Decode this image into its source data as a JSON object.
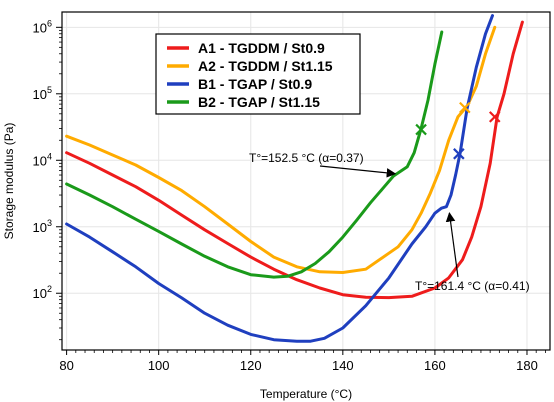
{
  "chart_data": {
    "type": "line",
    "xlabel": "Temperature (°C)",
    "ylabel": "Storage modulus (Pa)",
    "xlim": [
      79,
      185
    ],
    "ylim": [
      14,
      1700000
    ],
    "yscale": "log",
    "xticks": [
      80,
      100,
      120,
      140,
      160,
      180
    ],
    "yticks": [
      {
        "value": 100,
        "base": "10",
        "exp": "2"
      },
      {
        "value": 1000,
        "base": "10",
        "exp": "3"
      },
      {
        "value": 10000,
        "base": "10",
        "exp": "4"
      },
      {
        "value": 100000,
        "base": "10",
        "exp": "5"
      },
      {
        "value": 1000000,
        "base": "10",
        "exp": "6"
      }
    ],
    "grid": true,
    "legend_position": "top-center",
    "series": [
      {
        "name": "A1 - TGDDM / St0.9",
        "color": "#ee1c1c",
        "x": [
          80,
          85,
          90,
          95,
          100,
          105,
          110,
          115,
          120,
          125,
          130,
          135,
          140,
          145,
          150,
          155,
          160,
          163,
          166,
          168,
          170,
          172,
          173.5,
          175,
          177,
          179
        ],
        "y": [
          13000,
          9000,
          6000,
          4000,
          2500,
          1500,
          900,
          560,
          350,
          230,
          160,
          120,
          95,
          87,
          86,
          90,
          120,
          170,
          320,
          700,
          2000,
          9000,
          45000,
          100000,
          400000,
          1200000
        ],
        "marker": {
          "x": 173,
          "y": 45000
        }
      },
      {
        "name": "A2 - TGDDM / St1.15",
        "color": "#ffab00",
        "x": [
          80,
          85,
          90,
          95,
          100,
          105,
          110,
          115,
          120,
          125,
          130,
          135,
          140,
          145,
          150,
          152,
          155,
          157,
          159,
          161,
          163,
          165,
          167,
          169,
          171,
          173
        ],
        "y": [
          23000,
          17000,
          12000,
          8500,
          5500,
          3500,
          2000,
          1100,
          600,
          350,
          250,
          210,
          205,
          230,
          400,
          500,
          900,
          1600,
          3200,
          7000,
          20000,
          45000,
          65000,
          130000,
          400000,
          1000000
        ],
        "marker": {
          "x": 166.5,
          "y": 62000
        }
      },
      {
        "name": "B1 - TGAP / St0.9",
        "color": "#1f3fbf",
        "x": [
          80,
          85,
          90,
          95,
          100,
          105,
          110,
          115,
          120,
          125,
          130,
          133,
          136,
          140,
          145,
          150,
          155,
          158,
          160,
          161.4,
          162.5,
          163.5,
          164.5,
          165.5,
          167,
          169,
          171,
          172.5
        ],
        "y": [
          1100,
          700,
          420,
          250,
          140,
          85,
          50,
          33,
          24,
          20,
          19,
          19,
          21,
          30,
          65,
          170,
          550,
          1000,
          1600,
          1900,
          2000,
          3000,
          6000,
          13000,
          60000,
          250000,
          800000,
          1500000
        ],
        "marker": {
          "x": 165.2,
          "y": 12500
        }
      },
      {
        "name": "B2 - TGAP / St1.15",
        "color": "#1a9a1a",
        "x": [
          80,
          85,
          90,
          95,
          100,
          105,
          110,
          115,
          120,
          125,
          128,
          131,
          134,
          137,
          140,
          143,
          146,
          149,
          151,
          152.5,
          154,
          155.5,
          157,
          158.5,
          160,
          161.5
        ],
        "y": [
          4400,
          3000,
          2000,
          1300,
          850,
          550,
          360,
          250,
          190,
          175,
          180,
          210,
          280,
          420,
          700,
          1250,
          2300,
          4000,
          5800,
          6800,
          8000,
          13000,
          30000,
          80000,
          280000,
          850000
        ],
        "marker": {
          "x": 157,
          "y": 29000
        }
      }
    ],
    "annotations": [
      {
        "text": "T°=152.5 °C (α=0.37)",
        "target_x": 152,
        "target_y": 6500
      },
      {
        "text": "T°=161.4 °C (α=0.41)",
        "target_x": 162.5,
        "target_y": 1900
      }
    ]
  }
}
